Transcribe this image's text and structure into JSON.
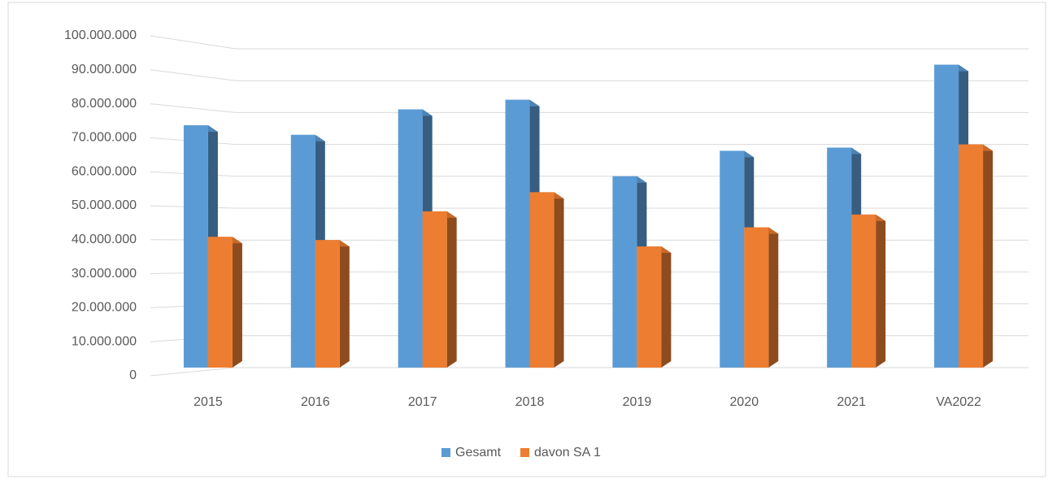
{
  "chart_data": {
    "type": "bar",
    "categories": [
      "2015",
      "2016",
      "2017",
      "2018",
      "2019",
      "2020",
      "2021",
      "VA2022"
    ],
    "series": [
      {
        "name": "Gesamt",
        "color": "#5b9bd5",
        "values": [
          76000000,
          73000000,
          81000000,
          84000000,
          60000000,
          68000000,
          69000000,
          95000000
        ]
      },
      {
        "name": "davon SA 1",
        "color": "#ed7d31",
        "values": [
          41000000,
          40000000,
          49000000,
          55000000,
          38000000,
          44000000,
          48000000,
          70000000
        ]
      }
    ],
    "ylim": [
      0,
      100000000
    ],
    "yticks": [
      0,
      {
        "value": 10000000,
        "label": "10.000.000"
      },
      {
        "value": 20000000,
        "label": "20.000.000"
      },
      {
        "value": 30000000,
        "label": "30.000.000"
      },
      {
        "value": 40000000,
        "label": "40.000.000"
      },
      {
        "value": 50000000,
        "label": "50.000.000"
      },
      {
        "value": 60000000,
        "label": "60.000.000"
      },
      {
        "value": 70000000,
        "label": "70.000.000"
      },
      {
        "value": 80000000,
        "label": "80.000.000"
      },
      {
        "value": 90000000,
        "label": "90.000.000"
      },
      {
        "value": 100000000,
        "label": "100.000.000"
      }
    ],
    "grid": true,
    "legend": "bottom"
  }
}
